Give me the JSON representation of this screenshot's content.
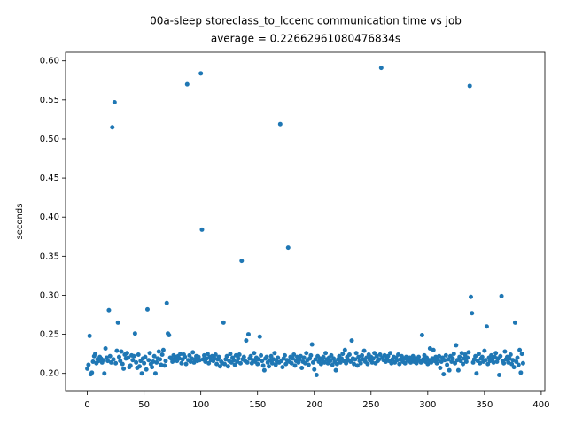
{
  "chart_data": {
    "type": "scatter",
    "title": "00a-sleep storeclass_to_lccenc communication time vs job",
    "subtitle": "average = 0.22662961080476834s",
    "y_label": "seconds",
    "x": [
      0,
      1,
      2,
      3,
      4,
      5,
      6,
      7,
      8,
      9,
      10,
      11,
      12,
      13,
      14,
      15,
      16,
      17,
      18,
      19,
      20,
      21,
      22,
      23,
      24,
      25,
      26,
      27,
      28,
      29,
      30,
      31,
      32,
      33,
      34,
      35,
      36,
      37,
      38,
      39,
      40,
      41,
      42,
      43,
      44,
      45,
      46,
      47,
      48,
      49,
      50,
      51,
      52,
      53,
      54,
      55,
      56,
      57,
      58,
      59,
      60,
      61,
      62,
      63,
      64,
      65,
      66,
      67,
      68,
      69,
      70,
      71,
      72,
      73,
      74,
      75,
      76,
      77,
      78,
      79,
      80,
      81,
      82,
      83,
      84,
      85,
      86,
      87,
      88,
      89,
      90,
      91,
      92,
      93,
      94,
      95,
      96,
      97,
      98,
      99,
      100,
      101,
      102,
      103,
      104,
      105,
      106,
      107,
      108,
      109,
      110,
      111,
      112,
      113,
      114,
      115,
      116,
      117,
      118,
      119,
      120,
      121,
      122,
      123,
      124,
      125,
      126,
      127,
      128,
      129,
      130,
      131,
      132,
      133,
      134,
      135,
      136,
      137,
      138,
      139,
      140,
      141,
      142,
      143,
      144,
      145,
      146,
      147,
      148,
      149,
      150,
      151,
      152,
      153,
      154,
      155,
      156,
      157,
      158,
      159,
      160,
      161,
      162,
      163,
      164,
      165,
      166,
      167,
      168,
      169,
      170,
      171,
      172,
      173,
      174,
      175,
      176,
      177,
      178,
      179,
      180,
      181,
      182,
      183,
      184,
      185,
      186,
      187,
      188,
      189,
      190,
      191,
      192,
      193,
      194,
      195,
      196,
      197,
      198,
      199,
      200,
      201,
      202,
      203,
      204,
      205,
      206,
      207,
      208,
      209,
      210,
      211,
      212,
      213,
      214,
      215,
      216,
      217,
      218,
      219,
      220,
      221,
      222,
      223,
      224,
      225,
      226,
      227,
      228,
      229,
      230,
      231,
      232,
      233,
      234,
      235,
      236,
      237,
      238,
      239,
      240,
      241,
      242,
      243,
      244,
      245,
      246,
      247,
      248,
      249,
      250,
      251,
      252,
      253,
      254,
      255,
      256,
      257,
      258,
      259,
      260,
      261,
      262,
      263,
      264,
      265,
      266,
      267,
      268,
      269,
      270,
      271,
      272,
      273,
      274,
      275,
      276,
      277,
      278,
      279,
      280,
      281,
      282,
      283,
      284,
      285,
      286,
      287,
      288,
      289,
      290,
      291,
      292,
      293,
      294,
      295,
      296,
      297,
      298,
      299,
      300,
      301,
      302,
      303,
      304,
      305,
      306,
      307,
      308,
      309,
      310,
      311,
      312,
      313,
      314,
      315,
      316,
      317,
      318,
      319,
      320,
      321,
      322,
      323,
      324,
      325,
      326,
      327,
      328,
      329,
      330,
      331,
      332,
      333,
      334,
      335,
      336,
      337,
      338,
      339,
      340,
      341,
      342,
      343,
      344,
      345,
      346,
      347,
      348,
      349,
      350,
      351,
      352,
      353,
      354,
      355,
      356,
      357,
      358,
      359,
      360,
      361,
      362,
      363,
      364,
      365,
      366,
      367,
      368,
      369,
      370,
      371,
      372,
      373,
      374,
      375,
      376,
      377,
      378,
      379,
      380,
      381,
      382,
      383,
      384
    ],
    "values": [
      0.206,
      0.211,
      0.248,
      0.199,
      0.201,
      0.215,
      0.222,
      0.225,
      0.213,
      0.218,
      0.216,
      0.221,
      0.219,
      0.214,
      0.217,
      0.2,
      0.232,
      0.22,
      0.216,
      0.281,
      0.222,
      0.214,
      0.515,
      0.218,
      0.547,
      0.213,
      0.229,
      0.265,
      0.221,
      0.216,
      0.228,
      0.212,
      0.206,
      0.224,
      0.219,
      0.226,
      0.22,
      0.208,
      0.21,
      0.223,
      0.217,
      0.222,
      0.251,
      0.214,
      0.207,
      0.224,
      0.209,
      0.216,
      0.2,
      0.219,
      0.213,
      0.221,
      0.205,
      0.282,
      0.217,
      0.226,
      0.212,
      0.208,
      0.215,
      0.222,
      0.2,
      0.214,
      0.219,
      0.228,
      0.218,
      0.211,
      0.224,
      0.23,
      0.21,
      0.216,
      0.29,
      0.251,
      0.249,
      0.22,
      0.219,
      0.215,
      0.223,
      0.218,
      0.221,
      0.216,
      0.222,
      0.219,
      0.225,
      0.213,
      0.218,
      0.224,
      0.221,
      0.212,
      0.57,
      0.217,
      0.223,
      0.215,
      0.219,
      0.227,
      0.214,
      0.218,
      0.222,
      0.216,
      0.221,
      0.217,
      0.584,
      0.384,
      0.218,
      0.223,
      0.215,
      0.219,
      0.225,
      0.213,
      0.221,
      0.217,
      0.222,
      0.216,
      0.219,
      0.224,
      0.212,
      0.218,
      0.221,
      0.209,
      0.215,
      0.213,
      0.265,
      0.212,
      0.218,
      0.222,
      0.209,
      0.216,
      0.225,
      0.214,
      0.22,
      0.217,
      0.211,
      0.223,
      0.215,
      0.219,
      0.224,
      0.213,
      0.344,
      0.218,
      0.221,
      0.216,
      0.242,
      0.214,
      0.25,
      0.219,
      0.222,
      0.213,
      0.217,
      0.226,
      0.215,
      0.22,
      0.212,
      0.218,
      0.247,
      0.223,
      0.216,
      0.21,
      0.204,
      0.219,
      0.221,
      0.214,
      0.209,
      0.217,
      0.222,
      0.213,
      0.218,
      0.226,
      0.211,
      0.215,
      0.22,
      0.214,
      0.519,
      0.216,
      0.208,
      0.219,
      0.223,
      0.212,
      0.217,
      0.361,
      0.215,
      0.221,
      0.213,
      0.219,
      0.224,
      0.21,
      0.216,
      0.221,
      0.214,
      0.218,
      0.222,
      0.207,
      0.215,
      0.22,
      0.213,
      0.226,
      0.217,
      0.211,
      0.219,
      0.223,
      0.237,
      0.214,
      0.205,
      0.218,
      0.198,
      0.222,
      0.215,
      0.219,
      0.212,
      0.217,
      0.221,
      0.214,
      0.226,
      0.218,
      0.213,
      0.22,
      0.216,
      0.223,
      0.211,
      0.219,
      0.215,
      0.204,
      0.212,
      0.218,
      0.222,
      0.214,
      0.219,
      0.225,
      0.216,
      0.23,
      0.213,
      0.221,
      0.217,
      0.224,
      0.215,
      0.242,
      0.219,
      0.212,
      0.218,
      0.226,
      0.21,
      0.221,
      0.216,
      0.213,
      0.223,
      0.218,
      0.229,
      0.215,
      0.22,
      0.212,
      0.224,
      0.217,
      0.221,
      0.214,
      0.219,
      0.226,
      0.213,
      0.222,
      0.216,
      0.218,
      0.224,
      0.591,
      0.22,
      0.217,
      0.223,
      0.215,
      0.219,
      0.222,
      0.216,
      0.226,
      0.213,
      0.218,
      0.221,
      0.214,
      0.22,
      0.217,
      0.224,
      0.212,
      0.218,
      0.222,
      0.215,
      0.219,
      0.213,
      0.221,
      0.217,
      0.216,
      0.22,
      0.214,
      0.218,
      0.222,
      0.215,
      0.219,
      0.213,
      0.217,
      0.221,
      0.216,
      0.214,
      0.249,
      0.218,
      0.223,
      0.215,
      0.22,
      0.212,
      0.217,
      0.232,
      0.214,
      0.219,
      0.23,
      0.216,
      0.221,
      0.213,
      0.218,
      0.222,
      0.207,
      0.215,
      0.22,
      0.199,
      0.217,
      0.223,
      0.211,
      0.218,
      0.204,
      0.222,
      0.215,
      0.219,
      0.225,
      0.213,
      0.236,
      0.217,
      0.204,
      0.221,
      0.216,
      0.226,
      0.212,
      0.219,
      0.224,
      0.215,
      0.22,
      0.227,
      0.568,
      0.298,
      0.277,
      0.214,
      0.218,
      0.222,
      0.2,
      0.216,
      0.225,
      0.213,
      0.219,
      0.221,
      0.215,
      0.229,
      0.217,
      0.26,
      0.212,
      0.22,
      0.216,
      0.223,
      0.218,
      0.214,
      0.221,
      0.226,
      0.215,
      0.219,
      0.198,
      0.222,
      0.299,
      0.216,
      0.213,
      0.228,
      0.218,
      0.221,
      0.214,
      0.219,
      0.224,
      0.212,
      0.217,
      0.208,
      0.265,
      0.215,
      0.22,
      0.211,
      0.23,
      0.201,
      0.225,
      0.213
    ],
    "color": "#1f77b4",
    "xlim": [
      -19.2,
      403.2
    ],
    "ylim": [
      0.177,
      0.611
    ],
    "xticks": [
      0,
      50,
      100,
      150,
      200,
      250,
      300,
      350,
      400
    ],
    "yticks": [
      {
        "value": 0.2,
        "label": "0.20"
      },
      {
        "value": 0.25,
        "label": "0.25"
      },
      {
        "value": 0.3,
        "label": "0.30"
      },
      {
        "value": 0.35,
        "label": "0.35"
      },
      {
        "value": 0.4,
        "label": "0.40"
      },
      {
        "value": 0.45,
        "label": "0.45"
      },
      {
        "value": 0.5,
        "label": "0.50"
      },
      {
        "value": 0.55,
        "label": "0.55"
      },
      {
        "value": 0.6,
        "label": "0.60"
      }
    ]
  }
}
